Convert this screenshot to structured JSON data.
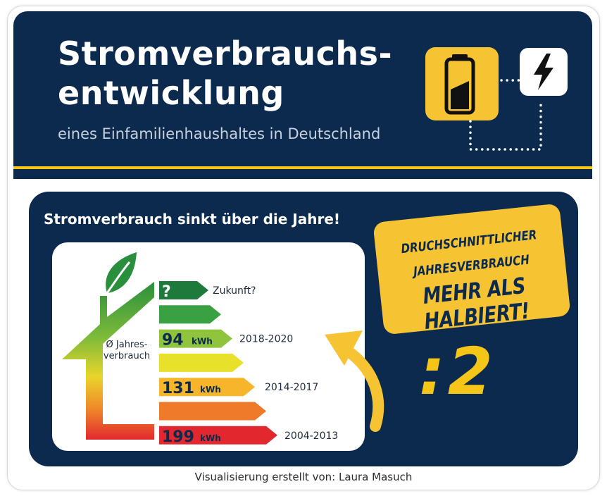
{
  "header": {
    "title_line1": "Stromverbrauchs-",
    "title_line2": "entwicklung",
    "subtitle": "eines Einfamilienhaushaltes in Deutschland"
  },
  "panel": {
    "heading": "Stromverbrauch sinkt über die Jahre!",
    "avg_line1": "Ø Jahres-",
    "avg_line2": "verbrauch",
    "bars": [
      {
        "value": "?",
        "unit": "",
        "label": "Zukunft?",
        "color": "#1e7a3a"
      },
      {
        "value": "",
        "unit": "",
        "label": "",
        "color": "#3aa142"
      },
      {
        "value": "94",
        "unit": "kWh",
        "label": "2018-2020",
        "color": "#8fc43c"
      },
      {
        "value": "",
        "unit": "",
        "label": "",
        "color": "#e8e12b"
      },
      {
        "value": "131",
        "unit": "kWh",
        "label": "2014-2017",
        "color": "#f6b52b"
      },
      {
        "value": "",
        "unit": "",
        "label": "",
        "color": "#ee7a2a"
      },
      {
        "value": "199",
        "unit": "kWh",
        "label": "2004-2013",
        "color": "#e2282e"
      }
    ],
    "note_line1": "DRUCHSCHNITTLICHER",
    "note_line2": "JAHRESVERBRAUCH",
    "note_line3": "MEHR ALS HALBIERT!",
    "divide": ":2"
  },
  "credit": "Visualisierung erstellt von: Laura Masuch",
  "icons": [
    "battery-icon",
    "lightning-bolt-icon",
    "leaf-icon",
    "curved-arrow-icon"
  ],
  "colors": {
    "navy": "#0b2a4e",
    "yellow": "#f5c518",
    "note_yellow": "#f6c333"
  }
}
